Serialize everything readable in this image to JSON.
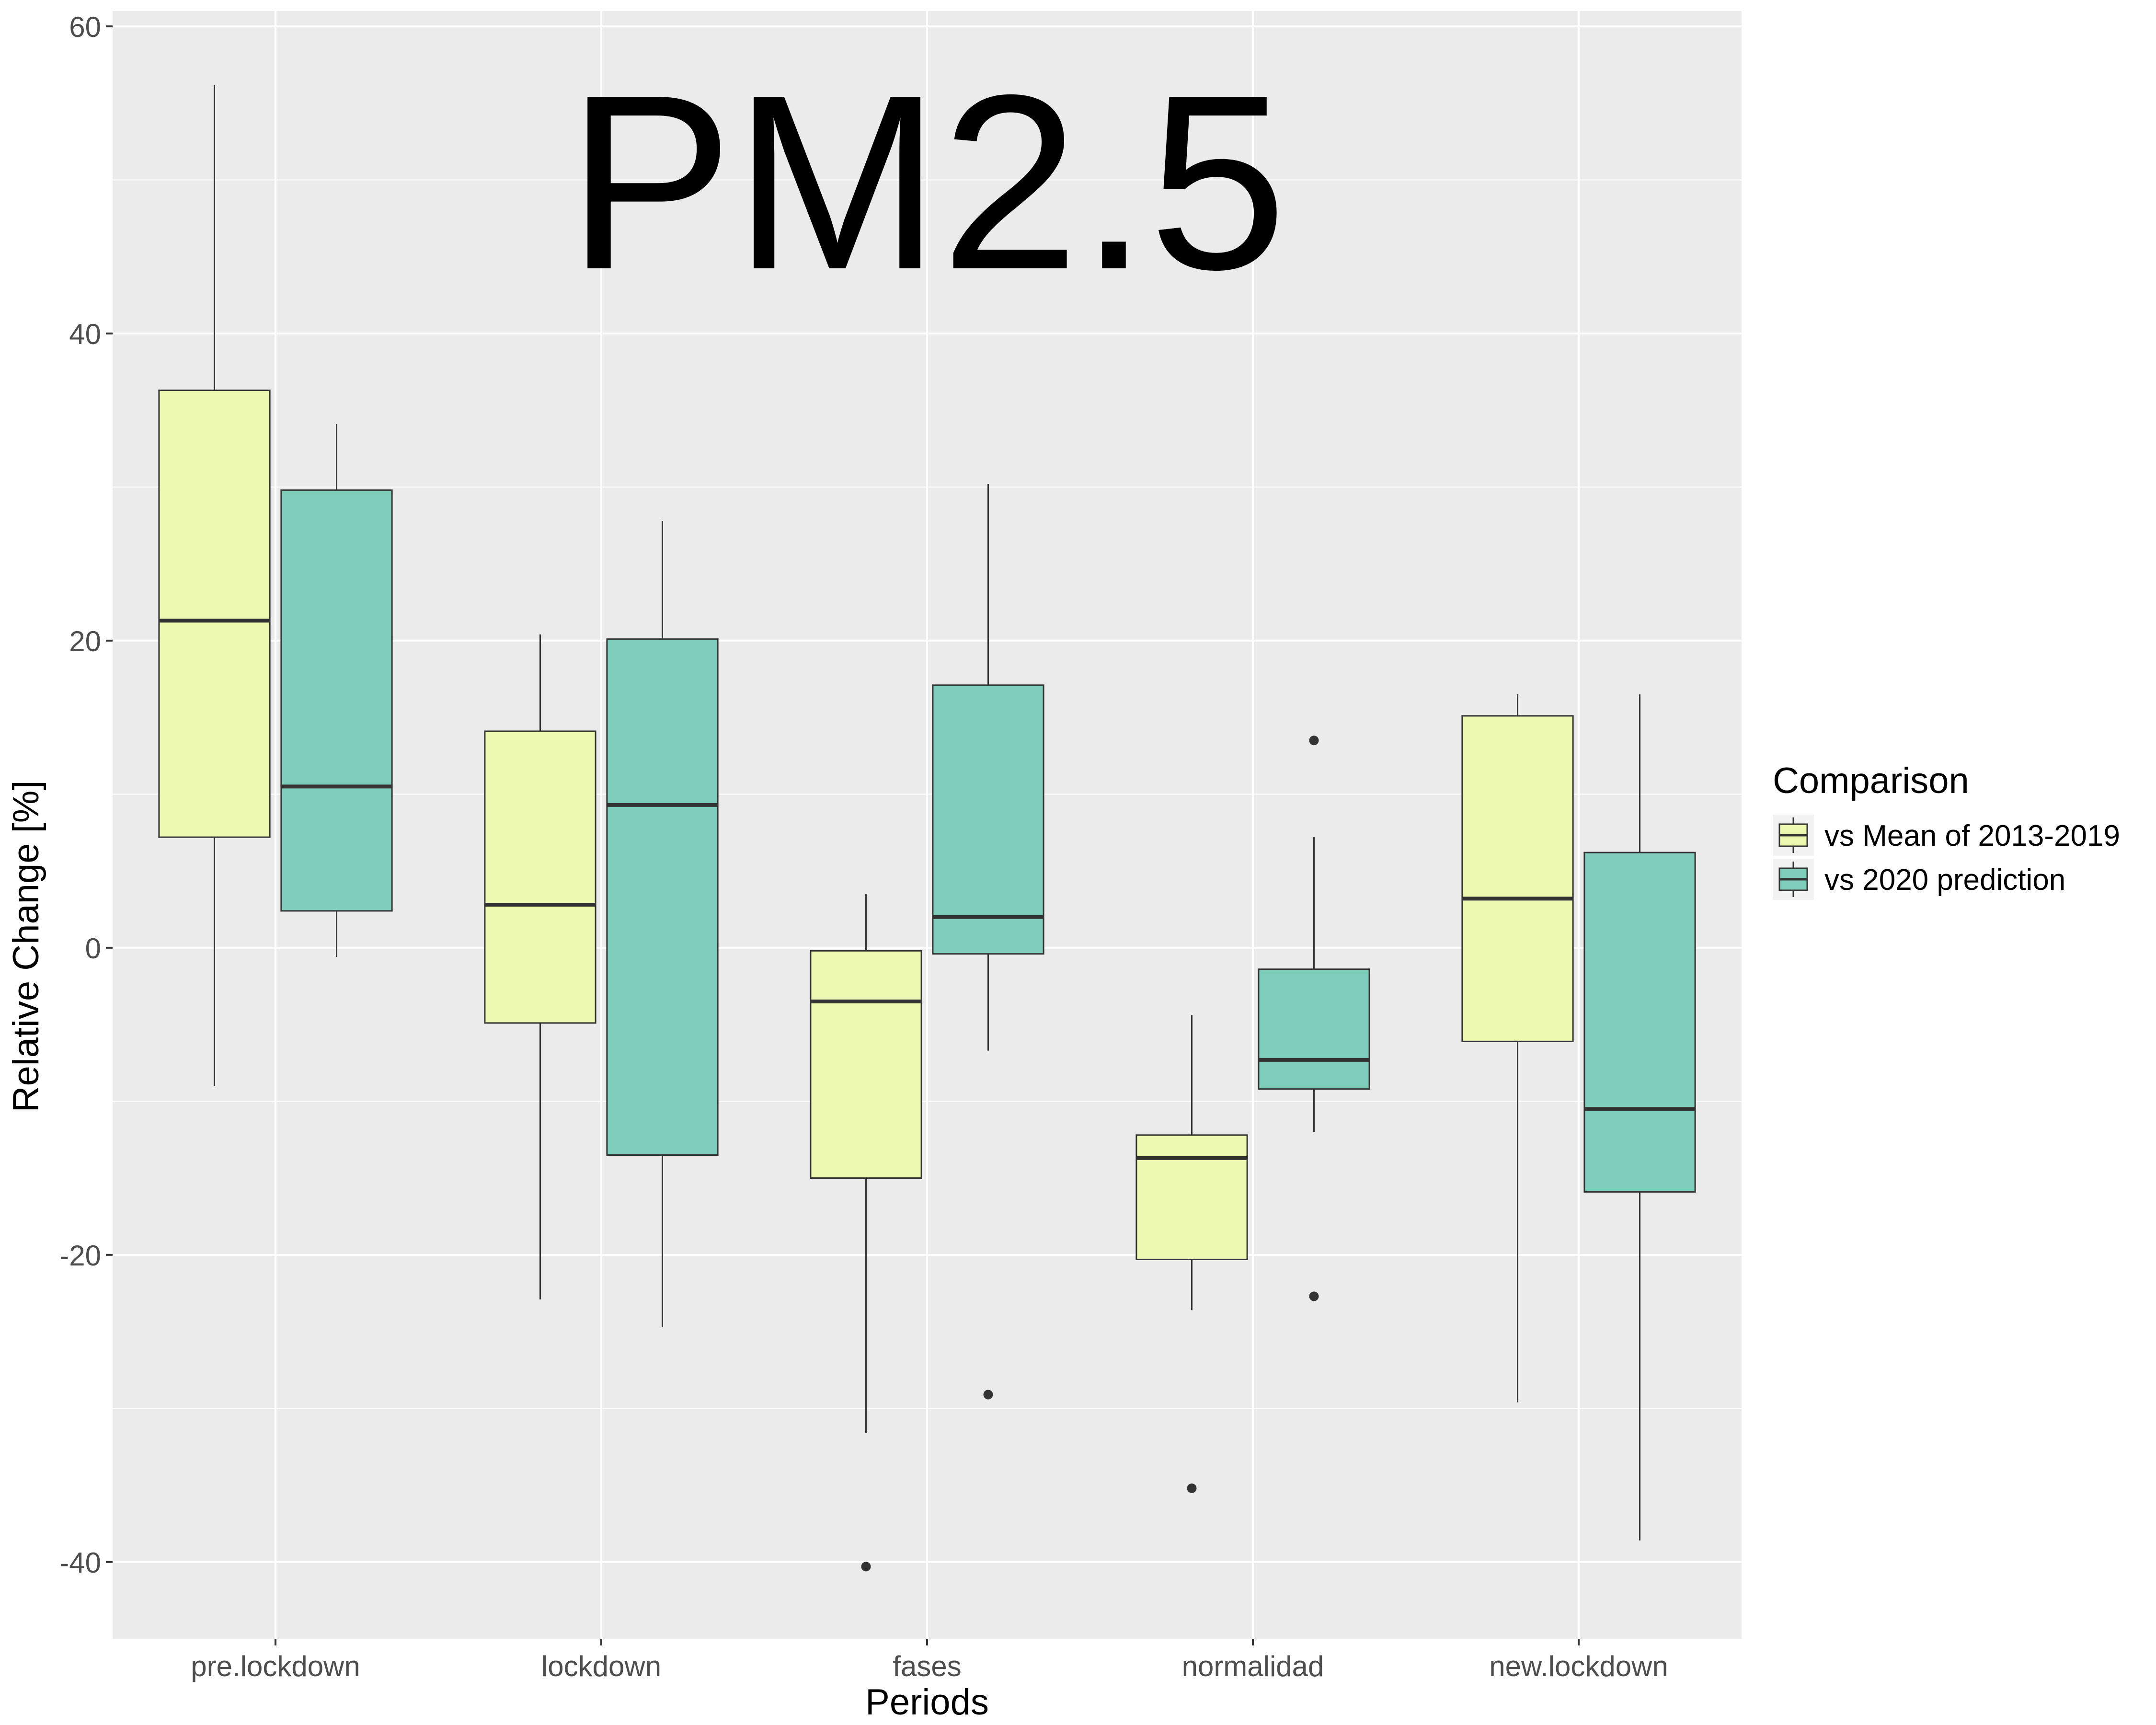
{
  "chart_data": {
    "type": "boxplot",
    "title": "PM2.5",
    "xlabel": "Periods",
    "ylabel": "Relative Change [%]",
    "ylim": [
      -45,
      61
    ],
    "y_ticks": [
      -40,
      -20,
      0,
      20,
      40,
      60
    ],
    "grid": true,
    "legend_position": "right",
    "categories": [
      "pre.lockdown",
      "lockdown",
      "fases",
      "normalidad",
      "new.lockdown"
    ],
    "legend": {
      "title": "Comparison"
    },
    "series": [
      {
        "name": "vs Mean of 2013-2019",
        "color": "#EDF8B1",
        "boxes": [
          {
            "whisker_low": -9,
            "q1": 7.2,
            "median": 21.3,
            "q3": 36.3,
            "whisker_high": 56.2,
            "outliers": []
          },
          {
            "whisker_low": -22.9,
            "q1": -4.9,
            "median": 2.8,
            "q3": 14.1,
            "whisker_high": 20.4,
            "outliers": []
          },
          {
            "whisker_low": -31.6,
            "q1": -15,
            "median": -3.5,
            "q3": -0.2,
            "whisker_high": 3.5,
            "outliers": [
              -40.3
            ]
          },
          {
            "whisker_low": -23.6,
            "q1": -20.3,
            "median": -13.7,
            "q3": -12.2,
            "whisker_high": -4.4,
            "outliers": [
              -35.2
            ]
          },
          {
            "whisker_low": -29.6,
            "q1": -6.1,
            "median": 3.2,
            "q3": 15.1,
            "whisker_high": 16.5,
            "outliers": []
          }
        ]
      },
      {
        "name": "vs 2020 prediction",
        "color": "#7FCDBB",
        "boxes": [
          {
            "whisker_low": -0.6,
            "q1": 2.4,
            "median": 10.5,
            "q3": 29.8,
            "whisker_high": 34.1,
            "outliers": []
          },
          {
            "whisker_low": -24.7,
            "q1": -13.5,
            "median": 9.3,
            "q3": 20.1,
            "whisker_high": 27.8,
            "outliers": []
          },
          {
            "whisker_low": -6.7,
            "q1": -0.4,
            "median": 2,
            "q3": 17.1,
            "whisker_high": 30.2,
            "outliers": [
              -29.1
            ]
          },
          {
            "whisker_low": -12,
            "q1": -9.2,
            "median": -7.3,
            "q3": -1.4,
            "whisker_high": 7.2,
            "outliers": [
              -22.7,
              13.5
            ]
          },
          {
            "whisker_low": -38.6,
            "q1": -15.9,
            "median": -10.5,
            "q3": 6.2,
            "whisker_high": 16.5,
            "outliers": []
          }
        ]
      }
    ]
  }
}
